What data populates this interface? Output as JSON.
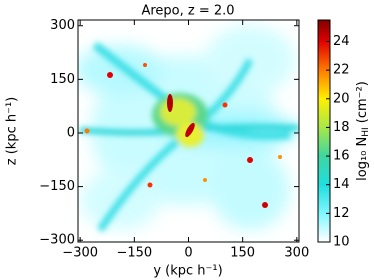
{
  "chart_data": {
    "type": "image",
    "title": "Arepo, z = 2.0",
    "x_label": "y (kpc h⁻¹)",
    "y_label": "z (kpc h⁻¹)",
    "xlim": [
      -306,
      306
    ],
    "ylim": [
      -305,
      316
    ],
    "xticks": [
      {
        "value": -300,
        "label": "−300"
      },
      {
        "value": -150,
        "label": "−150"
      },
      0,
      150,
      300
    ],
    "yticks": [
      {
        "value": -300,
        "label": "−300"
      },
      {
        "value": -150,
        "label": "−150"
      },
      0,
      150,
      300
    ],
    "colorbar": {
      "label": "log₁₀ N",
      "label_sub": "HI",
      "label_unit": " (cm⁻²)",
      "lim": [
        10,
        25.5
      ],
      "ticks": [
        10,
        12,
        14,
        16,
        18,
        20,
        22,
        24
      ],
      "colormap": [
        {
          "value": 10,
          "color": "#ffffff"
        },
        {
          "value": 12,
          "color": "#7ff7ff"
        },
        {
          "value": 14,
          "color": "#20dede"
        },
        {
          "value": 16,
          "color": "#3ed6a0"
        },
        {
          "value": 18,
          "color": "#a8e84a"
        },
        {
          "value": 20,
          "color": "#fff000"
        },
        {
          "value": 22,
          "color": "#ff7a00"
        },
        {
          "value": 24,
          "color": "#e00000"
        },
        {
          "value": 25.5,
          "color": "#800000"
        }
      ]
    }
  }
}
